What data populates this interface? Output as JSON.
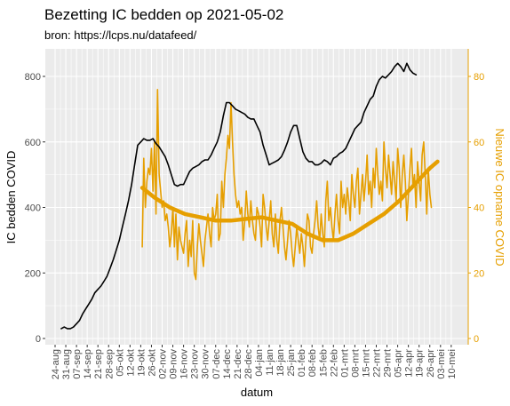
{
  "chart_data": {
    "type": "line",
    "title": "Bezetting IC bedden op 2021-05-02",
    "subtitle": "bron: https://lcps.nu/datafeed/",
    "xlabel": "datum",
    "ylabel": "IC bedden COVID",
    "ylabel_right": "Nieuwe IC opname COVID",
    "x_ticks": [
      "24-aug",
      "31-aug",
      "07-sep",
      "14-sep",
      "21-sep",
      "28-sep",
      "05-okt",
      "12-okt",
      "19-okt",
      "26-okt",
      "02-nov",
      "09-nov",
      "16-nov",
      "23-nov",
      "30-nov",
      "07-dec",
      "14-dec",
      "21-dec",
      "28-dec",
      "04-jan",
      "11-jan",
      "18-jan",
      "25-jan",
      "01-feb",
      "08-feb",
      "15-feb",
      "22-feb",
      "01-mrt",
      "08-mrt",
      "15-mrt",
      "22-mrt",
      "29-mrt",
      "05-apr",
      "12-apr",
      "19-apr",
      "26-apr",
      "03-mei",
      "10-mei"
    ],
    "ylim_left": [
      0,
      880
    ],
    "yticks_left": [
      0,
      200,
      400,
      600,
      800
    ],
    "ylim_right": [
      0,
      88
    ],
    "yticks_right": [
      0,
      20,
      40,
      60,
      80
    ],
    "grid": true,
    "colors": {
      "beds": "#000000",
      "admissions": "#e69f00",
      "panel": "#ebebeb",
      "grid": "#ffffff"
    },
    "series": [
      {
        "axis": "left",
        "x_days_from_24aug": [
          4,
          6,
          8,
          10,
          12,
          14,
          16,
          18,
          20,
          22,
          24,
          26,
          28,
          30,
          32,
          34,
          36,
          38,
          40,
          42,
          44,
          46,
          48,
          50,
          52,
          54,
          56,
          58,
          60,
          62,
          64,
          66,
          68,
          70,
          72,
          74,
          76,
          78,
          80,
          82,
          84,
          86,
          88,
          90,
          92,
          94,
          96,
          98,
          100,
          102,
          104,
          106,
          108,
          110,
          112,
          114,
          116,
          118,
          120,
          122,
          124,
          126,
          128,
          130,
          132,
          134,
          136,
          138,
          140,
          142,
          144,
          146,
          148,
          150,
          152,
          154,
          156,
          158,
          160,
          162,
          164,
          166,
          168,
          170,
          172,
          174,
          176,
          178,
          180,
          182,
          184,
          186,
          188,
          190,
          192,
          194,
          196,
          198,
          200,
          202,
          204,
          206,
          208,
          210,
          212,
          214,
          216,
          218,
          220,
          222,
          224,
          226,
          228,
          230,
          232,
          234,
          236,
          238,
          240,
          242,
          244,
          246,
          248,
          250,
          251
        ],
        "values": [
          30,
          35,
          30,
          30,
          35,
          45,
          55,
          75,
          90,
          105,
          120,
          140,
          150,
          160,
          175,
          190,
          215,
          240,
          270,
          300,
          340,
          380,
          420,
          470,
          530,
          590,
          600,
          610,
          605,
          605,
          610,
          595,
          585,
          570,
          555,
          530,
          500,
          470,
          465,
          470,
          470,
          490,
          510,
          520,
          525,
          530,
          540,
          545,
          545,
          560,
          580,
          600,
          630,
          680,
          720,
          720,
          710,
          700,
          695,
          690,
          685,
          675,
          670,
          670,
          650,
          630,
          590,
          560,
          530,
          535,
          540,
          545,
          555,
          575,
          600,
          630,
          650,
          650,
          610,
          570,
          550,
          540,
          540,
          530,
          530,
          535,
          545,
          540,
          530,
          550,
          555,
          565,
          570,
          580,
          600,
          620,
          640,
          650,
          660,
          690,
          710,
          730,
          740,
          770,
          790,
          800,
          795,
          805,
          815,
          830,
          840,
          830,
          815,
          840,
          820,
          810,
          805
        ]
      },
      {
        "axis": "right",
        "x_days_from_24aug": [
          57,
          58,
          59,
          60,
          61,
          62,
          63,
          64,
          65,
          66,
          67,
          68,
          69,
          70,
          71,
          72,
          73,
          74,
          75,
          76,
          77,
          78,
          79,
          80,
          81,
          82,
          83,
          84,
          85,
          86,
          87,
          88,
          89,
          90,
          91,
          92,
          93,
          94,
          95,
          96,
          97,
          98,
          99,
          100,
          101,
          102,
          103,
          104,
          105,
          106,
          107,
          108,
          109,
          110,
          111,
          112,
          113,
          114,
          115,
          116,
          117,
          118,
          119,
          120,
          121,
          122,
          123,
          124,
          125,
          126,
          127,
          128,
          129,
          130,
          131,
          132,
          133,
          134,
          135,
          136,
          137,
          138,
          139,
          140,
          141,
          142,
          143,
          144,
          145,
          146,
          147,
          148,
          149,
          150,
          151,
          152,
          153,
          154,
          155,
          156,
          157,
          158,
          159,
          160,
          161,
          162,
          163,
          164,
          165,
          166,
          167,
          168,
          169,
          170,
          171,
          172,
          173,
          174,
          175,
          176,
          177,
          178,
          179,
          180,
          181,
          182,
          183,
          184,
          185,
          186,
          187,
          188,
          189,
          190,
          191,
          192,
          193,
          194,
          195,
          196,
          197,
          198,
          199,
          200,
          201,
          202,
          203,
          204,
          205,
          206,
          207,
          208,
          209,
          210,
          211,
          212,
          213,
          214,
          215,
          216,
          217,
          218,
          219,
          220,
          221,
          222,
          223,
          224,
          225,
          226,
          227,
          228,
          229,
          230,
          231,
          232,
          233,
          234,
          235,
          236,
          237,
          238,
          239,
          240,
          241,
          242,
          243,
          244,
          245,
          246,
          247,
          248,
          249,
          250
        ],
        "values": [
          28,
          55,
          40,
          48,
          52,
          50,
          58,
          45,
          60,
          38,
          76,
          50,
          45,
          40,
          42,
          36,
          38,
          34,
          28,
          32,
          40,
          28,
          38,
          24,
          34,
          30,
          28,
          26,
          32,
          36,
          22,
          30,
          25,
          36,
          20,
          18,
          28,
          35,
          30,
          26,
          22,
          30,
          34,
          38,
          32,
          28,
          40,
          36,
          38,
          44,
          30,
          32,
          48,
          40,
          50,
          55,
          62,
          58,
          72,
          60,
          50,
          44,
          40,
          42,
          38,
          40,
          30,
          36,
          45,
          38,
          34,
          42,
          36,
          32,
          30,
          40,
          38,
          34,
          28,
          44,
          40,
          34,
          30,
          36,
          42,
          32,
          28,
          38,
          30,
          26,
          36,
          40,
          34,
          28,
          24,
          30,
          36,
          32,
          26,
          22,
          28,
          34,
          30,
          26,
          32,
          28,
          22,
          30,
          38,
          36,
          28,
          26,
          32,
          36,
          42,
          34,
          30,
          38,
          32,
          28,
          42,
          48,
          36,
          40,
          34,
          30,
          38,
          44,
          36,
          32,
          48,
          40,
          44,
          38,
          46,
          42,
          36,
          50,
          44,
          40,
          48,
          52,
          38,
          44,
          50,
          42,
          48,
          56,
          44,
          48,
          40,
          52,
          46,
          58,
          50,
          44,
          48,
          42,
          60,
          52,
          46,
          56,
          50,
          44,
          54,
          48,
          42,
          58,
          52,
          40,
          50,
          56,
          48,
          36,
          44,
          52,
          58,
          46,
          50,
          40,
          54,
          48,
          42,
          56,
          60,
          50,
          38,
          52,
          44,
          40
        ]
      },
      {
        "axis": "right",
        "smooth": true,
        "x_days_from_24aug": [
          57,
          65,
          75,
          85,
          95,
          105,
          115,
          125,
          135,
          145,
          155,
          165,
          175,
          185,
          195,
          205,
          215,
          225,
          235,
          245,
          250
        ],
        "values": [
          46,
          43,
          40,
          38,
          37,
          36,
          36,
          36.5,
          37,
          36,
          35,
          32,
          30,
          30,
          32,
          35,
          38,
          42,
          47,
          52,
          54
        ]
      }
    ]
  }
}
